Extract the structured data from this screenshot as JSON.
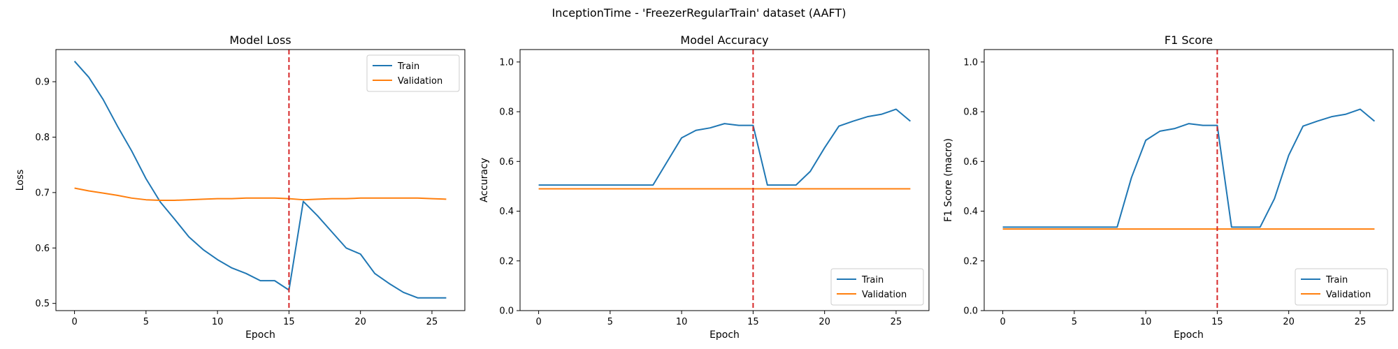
{
  "suptitle": "InceptionTime - 'FreezerRegularTrain' dataset (AAFT)",
  "colors": {
    "train": "#1f77b4",
    "validation": "#ff7f0e",
    "marker": "#d62728"
  },
  "chart_data": [
    {
      "type": "line",
      "title": "Model Loss",
      "xlabel": "Epoch",
      "ylabel": "Loss",
      "xlim": [
        -1.3,
        27.3
      ],
      "ylim": [
        0.487,
        0.958
      ],
      "xticks": [
        0,
        5,
        10,
        15,
        20,
        25
      ],
      "yticks": [
        0.5,
        0.6,
        0.7,
        0.8,
        0.9
      ],
      "ytick_labels": [
        "0.5",
        "0.6",
        "0.7",
        "0.8",
        "0.9"
      ],
      "vline_x": 15,
      "legend": "top-right",
      "grid": false,
      "x": [
        0,
        1,
        2,
        3,
        4,
        5,
        6,
        7,
        8,
        9,
        10,
        11,
        12,
        13,
        14,
        15,
        16,
        17,
        18,
        19,
        20,
        21,
        22,
        23,
        24,
        25,
        26
      ],
      "series": [
        {
          "name": "Train",
          "values": [
            0.937,
            0.908,
            0.868,
            0.82,
            0.775,
            0.725,
            0.683,
            0.652,
            0.62,
            0.597,
            0.579,
            0.564,
            0.554,
            0.541,
            0.541,
            0.524,
            0.684,
            0.658,
            0.629,
            0.6,
            0.589,
            0.554,
            0.536,
            0.52,
            0.51,
            0.51,
            0.51
          ]
        },
        {
          "name": "Validation",
          "values": [
            0.708,
            0.703,
            0.699,
            0.695,
            0.69,
            0.687,
            0.686,
            0.686,
            0.687,
            0.688,
            0.689,
            0.689,
            0.69,
            0.69,
            0.69,
            0.689,
            0.687,
            0.688,
            0.689,
            0.689,
            0.69,
            0.69,
            0.69,
            0.69,
            0.69,
            0.689,
            0.688
          ]
        }
      ]
    },
    {
      "type": "line",
      "title": "Model Accuracy",
      "xlabel": "Epoch",
      "ylabel": "Accuracy",
      "xlim": [
        -1.3,
        27.3
      ],
      "ylim": [
        0,
        1.05
      ],
      "xticks": [
        0,
        5,
        10,
        15,
        20,
        25
      ],
      "yticks": [
        0,
        0.2,
        0.4,
        0.6,
        0.8,
        1.0
      ],
      "ytick_labels": [
        "0.0",
        "0.2",
        "0.4",
        "0.6",
        "0.8",
        "1.0"
      ],
      "vline_x": 15,
      "legend": "bottom-right",
      "grid": false,
      "x": [
        0,
        1,
        2,
        3,
        4,
        5,
        6,
        7,
        8,
        9,
        10,
        11,
        12,
        13,
        14,
        15,
        16,
        17,
        18,
        19,
        20,
        21,
        22,
        23,
        24,
        25,
        26
      ],
      "series": [
        {
          "name": "Train",
          "values": [
            0.505,
            0.505,
            0.505,
            0.505,
            0.505,
            0.505,
            0.505,
            0.505,
            0.505,
            0.6,
            0.695,
            0.725,
            0.735,
            0.752,
            0.745,
            0.745,
            0.505,
            0.505,
            0.505,
            0.56,
            0.655,
            0.742,
            0.762,
            0.78,
            0.79,
            0.81,
            0.762
          ]
        },
        {
          "name": "Validation",
          "values": [
            0.49,
            0.49,
            0.49,
            0.49,
            0.49,
            0.49,
            0.49,
            0.49,
            0.49,
            0.49,
            0.49,
            0.49,
            0.49,
            0.49,
            0.49,
            0.49,
            0.49,
            0.49,
            0.49,
            0.49,
            0.49,
            0.49,
            0.49,
            0.49,
            0.49,
            0.49,
            0.49
          ]
        }
      ]
    },
    {
      "type": "line",
      "title": "F1 Score",
      "xlabel": "Epoch",
      "ylabel": "F1 Score (macro)",
      "xlim": [
        -1.3,
        27.3
      ],
      "ylim": [
        0,
        1.05
      ],
      "xticks": [
        0,
        5,
        10,
        15,
        20,
        25
      ],
      "yticks": [
        0,
        0.2,
        0.4,
        0.6,
        0.8,
        1.0
      ],
      "ytick_labels": [
        "0.0",
        "0.2",
        "0.4",
        "0.6",
        "0.8",
        "1.0"
      ],
      "vline_x": 15,
      "legend": "bottom-right",
      "grid": false,
      "x": [
        0,
        1,
        2,
        3,
        4,
        5,
        6,
        7,
        8,
        9,
        10,
        11,
        12,
        13,
        14,
        15,
        16,
        17,
        18,
        19,
        20,
        21,
        22,
        23,
        24,
        25,
        26
      ],
      "series": [
        {
          "name": "Train",
          "values": [
            0.336,
            0.336,
            0.336,
            0.336,
            0.336,
            0.336,
            0.336,
            0.336,
            0.336,
            0.535,
            0.685,
            0.722,
            0.732,
            0.752,
            0.745,
            0.745,
            0.336,
            0.336,
            0.336,
            0.45,
            0.625,
            0.742,
            0.762,
            0.78,
            0.79,
            0.81,
            0.762
          ]
        },
        {
          "name": "Validation",
          "values": [
            0.328,
            0.328,
            0.328,
            0.328,
            0.328,
            0.328,
            0.328,
            0.328,
            0.328,
            0.328,
            0.328,
            0.328,
            0.328,
            0.328,
            0.328,
            0.328,
            0.328,
            0.328,
            0.328,
            0.328,
            0.328,
            0.328,
            0.328,
            0.328,
            0.328,
            0.328,
            0.328
          ]
        }
      ]
    }
  ]
}
